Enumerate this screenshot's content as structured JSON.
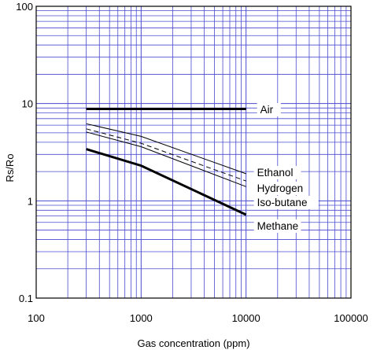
{
  "chart_data": {
    "type": "line",
    "title": "",
    "xlabel": "Gas concentration (ppm)",
    "ylabel": "Rs/Ro",
    "xscale": "log",
    "yscale": "log",
    "xlim": [
      100,
      100000
    ],
    "ylim": [
      0.1,
      100
    ],
    "xticks": [
      "100",
      "1000",
      "10000",
      "100000"
    ],
    "yticks": [
      "100",
      "10",
      "1",
      "0.1"
    ],
    "grid": true,
    "grid_color": "#4a4ad0",
    "legend": "labels at line ends on the right",
    "series": [
      {
        "name": "Air",
        "x": [
          300,
          10000
        ],
        "y": [
          8.8,
          8.8
        ],
        "style": "thick"
      },
      {
        "name": "Ethanol",
        "x": [
          300,
          1000,
          10000
        ],
        "y": [
          6.2,
          4.6,
          1.9
        ],
        "style": "thin"
      },
      {
        "name": "Hydrogen",
        "x": [
          300,
          1000,
          10000
        ],
        "y": [
          5.5,
          3.9,
          1.6
        ],
        "style": "dashed"
      },
      {
        "name": "Iso-butane",
        "x": [
          300,
          1000,
          10000
        ],
        "y": [
          5.1,
          3.6,
          1.4
        ],
        "style": "thin"
      },
      {
        "name": "Methane",
        "x": [
          300,
          1000,
          10000
        ],
        "y": [
          3.4,
          2.3,
          0.72
        ],
        "style": "thick"
      }
    ]
  }
}
